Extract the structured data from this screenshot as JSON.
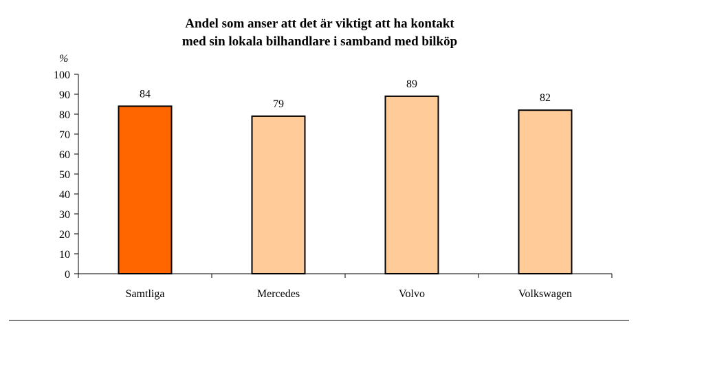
{
  "chart_data": {
    "type": "bar",
    "title_lines": [
      "Andel som anser att det är viktigt att ha kontakt",
      "med sin lokala bilhandlare i samband med bilköp"
    ],
    "ylabel": "%",
    "xlabel": "",
    "ylim": [
      0,
      100
    ],
    "yticks": [
      0,
      10,
      20,
      30,
      40,
      50,
      60,
      70,
      80,
      90,
      100
    ],
    "categories": [
      "Samtliga",
      "Mercedes",
      "Volvo",
      "Volkswagen"
    ],
    "values": [
      84,
      79,
      89,
      82
    ],
    "data_labels": [
      "84",
      "79",
      "89",
      "82"
    ],
    "bar_colors": [
      "#FF6600",
      "#FFCC99",
      "#FFCC99",
      "#FFCC99"
    ],
    "grid": false,
    "legend": "none"
  }
}
